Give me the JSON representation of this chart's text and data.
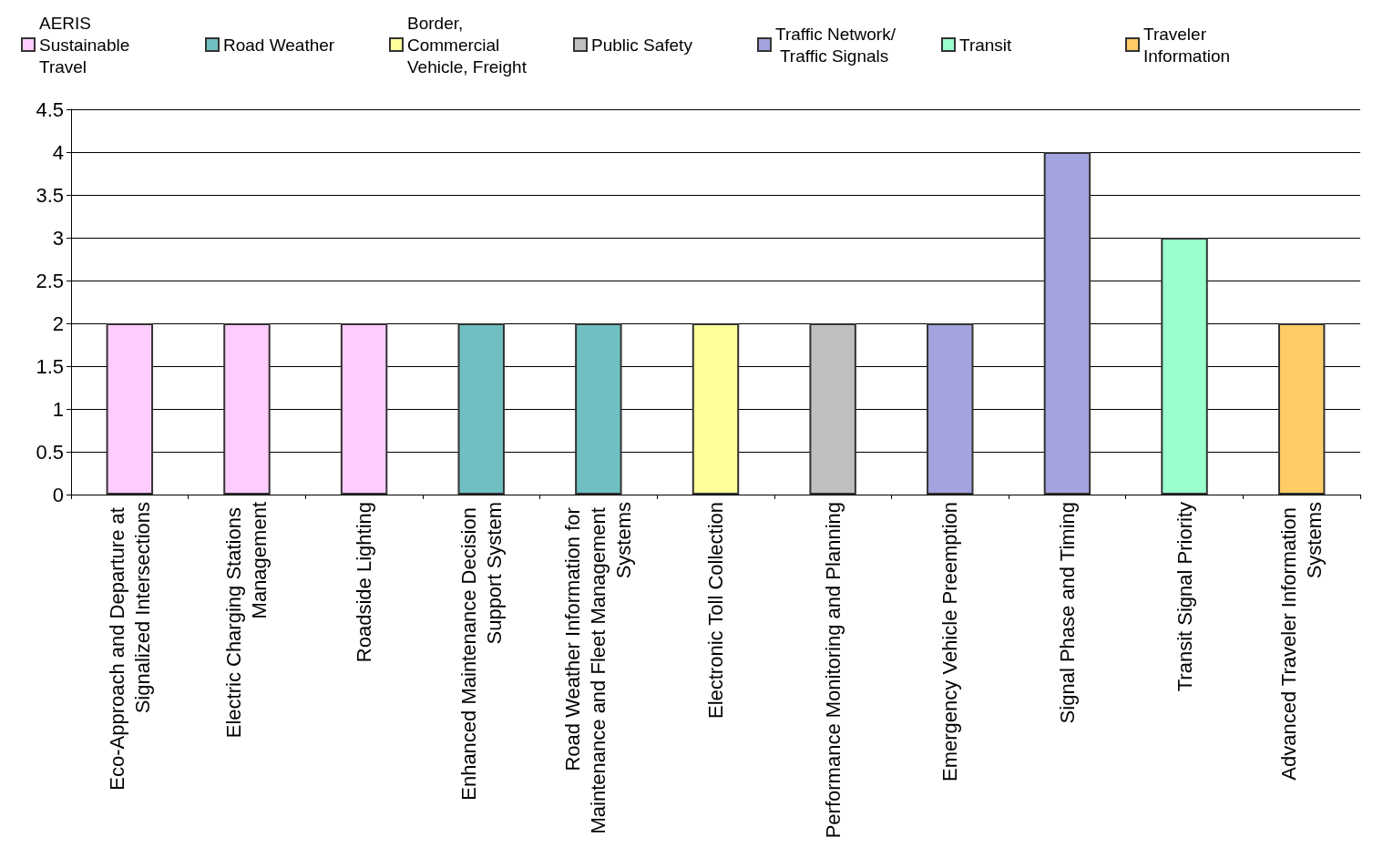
{
  "chart_data": {
    "type": "bar",
    "stacked": true,
    "categories": [
      "Eco-Approach and Departure at Signalized Intersections",
      "Electric Charging Stations Management",
      "Roadside Lighting",
      "Enhanced Maintenance Decision Support System",
      "Road Weather Information for Maintenance and Fleet Management Systems",
      "Electronic Toll Collection",
      "Performance Monitoring and Planning",
      "Emergency Vehicle Preemption",
      "Signal Phase and Timing",
      "Transit Signal Priority",
      "Advanced Traveler Information Systems"
    ],
    "series": [
      {
        "name": "AERIS Sustainable Travel",
        "color": "#ffccff",
        "values": [
          2,
          2,
          2,
          null,
          null,
          null,
          null,
          null,
          null,
          null,
          null
        ]
      },
      {
        "name": "Road Weather",
        "color": "#70bfc2",
        "values": [
          null,
          null,
          null,
          2,
          2,
          null,
          null,
          null,
          null,
          null,
          null
        ]
      },
      {
        "name": "Border, Commercial Vehicle, Freight",
        "color": "#ffff99",
        "values": [
          null,
          null,
          null,
          null,
          null,
          2,
          null,
          null,
          null,
          null,
          null
        ]
      },
      {
        "name": "Public Safety",
        "color": "#c0c0c0",
        "values": [
          null,
          null,
          null,
          null,
          null,
          null,
          2,
          null,
          null,
          null,
          null
        ]
      },
      {
        "name": "Traffic Network/ Traffic Signals",
        "color": "#a3a3e0",
        "values": [
          null,
          null,
          null,
          null,
          null,
          null,
          null,
          2,
          4,
          null,
          null
        ]
      },
      {
        "name": "Transit",
        "color": "#99ffcc",
        "values": [
          null,
          null,
          null,
          null,
          null,
          null,
          null,
          null,
          null,
          3,
          null
        ]
      },
      {
        "name": "Traveler Information",
        "color": "#ffcc66",
        "values": [
          null,
          null,
          null,
          null,
          null,
          null,
          null,
          null,
          null,
          null,
          2
        ]
      }
    ],
    "ylim": [
      0,
      4.5
    ],
    "yticks": [
      0,
      0.5,
      1,
      1.5,
      2,
      2.5,
      3,
      3.5,
      4,
      4.5
    ],
    "grid": "y",
    "legend": "top"
  }
}
